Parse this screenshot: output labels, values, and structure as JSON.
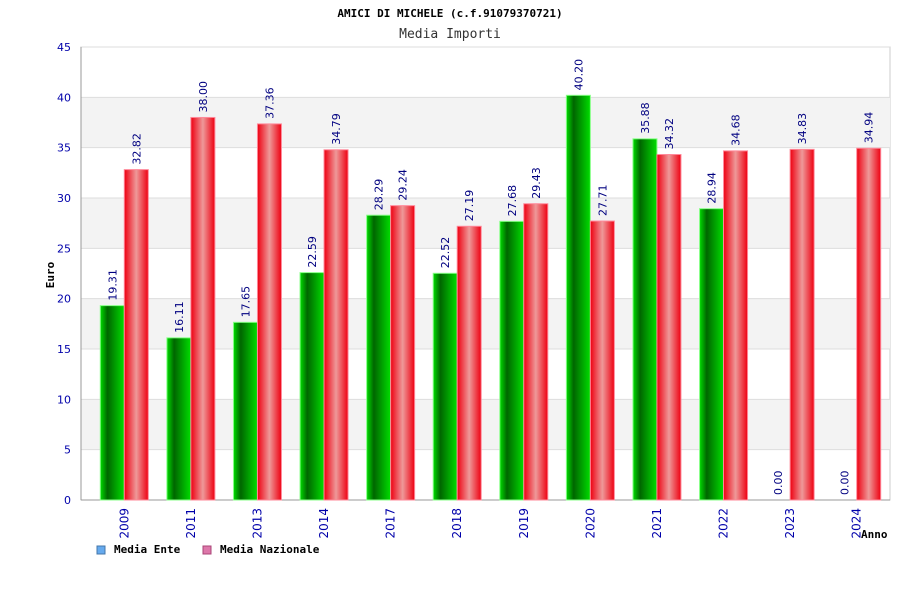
{
  "chart_data": {
    "type": "bar",
    "title": "AMICI DI MICHELE (c.f.91079370721)",
    "subtitle": "Media Importi",
    "xlabel": "Anno",
    "ylabel": "Euro",
    "ylim": [
      0,
      45
    ],
    "yticks": [
      "0",
      "5",
      "10",
      "15",
      "20",
      "25",
      "30",
      "35",
      "40",
      "45"
    ],
    "grid": true,
    "legend_position": "bottom-left",
    "categories": [
      "2009",
      "2011",
      "2013",
      "2014",
      "2017",
      "2018",
      "2019",
      "2020",
      "2021",
      "2022",
      "2023",
      "2024"
    ],
    "series": [
      {
        "name": "Media Ente",
        "color": "#00aa00",
        "legend_color": "#66aaee",
        "values": [
          19.31,
          16.11,
          17.65,
          22.59,
          28.29,
          22.52,
          27.68,
          40.2,
          35.88,
          28.94,
          0.0,
          0.0
        ],
        "labels": [
          "19.31",
          "16.11",
          "17.65",
          "22.59",
          "28.29",
          "22.52",
          "27.68",
          "40.20",
          "35.88",
          "28.94",
          "0.00",
          "0.00"
        ]
      },
      {
        "name": "Media Nazionale",
        "color": "#ee1122",
        "legend_color": "#dd77aa",
        "values": [
          32.82,
          38.0,
          37.36,
          34.79,
          29.24,
          27.19,
          29.43,
          27.71,
          34.32,
          34.68,
          34.83,
          34.94
        ],
        "labels": [
          "32.82",
          "38.00",
          "37.36",
          "34.79",
          "29.24",
          "27.19",
          "29.43",
          "27.71",
          "34.32",
          "34.68",
          "34.83",
          "34.94"
        ]
      }
    ]
  }
}
